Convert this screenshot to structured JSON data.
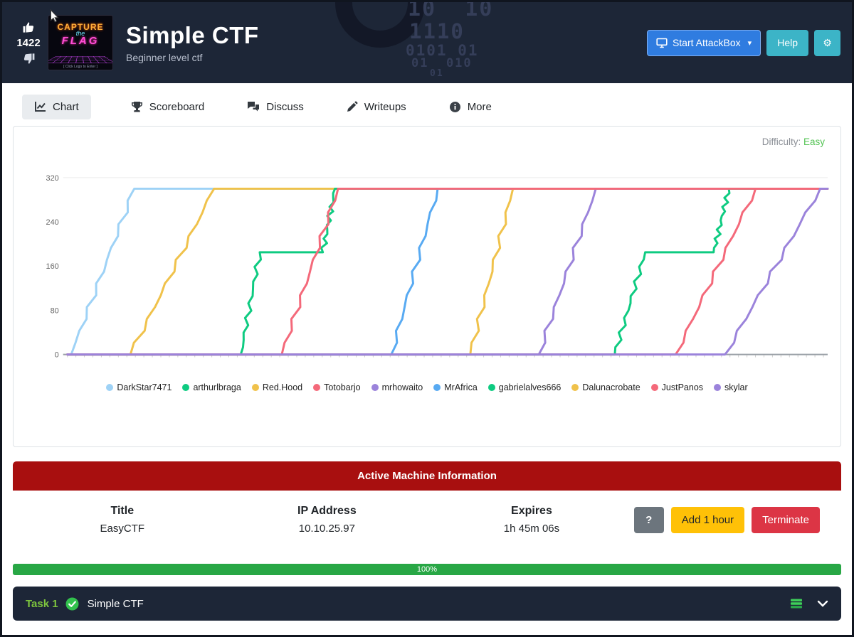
{
  "header": {
    "votes": "1422",
    "title": "Simple CTF",
    "subtitle": "Beginner level ctf",
    "attackbox_label": "Start AttackBox",
    "help_label": "Help",
    "logo": {
      "line1": "CAPTURE",
      "line2": "the",
      "line3": "FLAG",
      "caption": "[ Click Logo to Enter ]"
    },
    "watermark": [
      "10  10",
      "1110",
      "0101 01",
      "01  010",
      "01"
    ]
  },
  "tabs": [
    {
      "label": "Chart",
      "active": true
    },
    {
      "label": "Scoreboard",
      "active": false
    },
    {
      "label": "Discuss",
      "active": false
    },
    {
      "label": "Writeups",
      "active": false
    },
    {
      "label": "More",
      "active": false
    }
  ],
  "chart": {
    "difficulty_label": "Difficulty:",
    "difficulty_value": "Easy"
  },
  "chart_data": {
    "type": "line",
    "title": "",
    "xlabel": "",
    "ylabel": "",
    "ylim": [
      0,
      320
    ],
    "y_ticks": [
      0,
      80,
      160,
      240,
      320
    ],
    "x_range": [
      0,
      100
    ],
    "max_score": 300,
    "grid": "top-line-only",
    "legend_position": "bottom",
    "series": [
      {
        "name": "DarkStar7471",
        "color": "#9ed2f6",
        "points": [
          [
            0,
            0
          ],
          [
            0.5,
            0
          ],
          [
            8.8,
            300
          ],
          [
            100,
            300
          ]
        ]
      },
      {
        "name": "arthurlbraga",
        "color": "#0ecb81",
        "points": [
          [
            0,
            0
          ],
          [
            22.8,
            0
          ],
          [
            25.3,
            185
          ],
          [
            33.6,
            185
          ],
          [
            35.2,
            300
          ],
          [
            100,
            300
          ]
        ]
      },
      {
        "name": "Red.Hood",
        "color": "#f0c24b",
        "points": [
          [
            0,
            0
          ],
          [
            8.3,
            0
          ],
          [
            19.3,
            300
          ],
          [
            100,
            300
          ]
        ]
      },
      {
        "name": "Totobarjo",
        "color": "#f4697a",
        "points": [
          [
            0,
            0
          ],
          [
            28.2,
            0
          ],
          [
            35.6,
            300
          ],
          [
            100,
            300
          ]
        ]
      },
      {
        "name": "mrhowaito",
        "color": "#9b83db",
        "points": [
          [
            0,
            0
          ],
          [
            62,
            0
          ],
          [
            69.5,
            300
          ],
          [
            100,
            300
          ]
        ]
      },
      {
        "name": "MrAfrica",
        "color": "#58aaf2",
        "points": [
          [
            0,
            0
          ],
          [
            42.6,
            0
          ],
          [
            48.7,
            300
          ],
          [
            100,
            300
          ]
        ]
      },
      {
        "name": "gabrielalves666",
        "color": "#0ecb81",
        "points": [
          [
            0,
            0
          ],
          [
            72,
            0
          ],
          [
            76,
            185
          ],
          [
            85,
            185
          ],
          [
            87,
            300
          ],
          [
            100,
            300
          ]
        ]
      },
      {
        "name": "Dalunacrobate",
        "color": "#f0c24b",
        "points": [
          [
            0,
            0
          ],
          [
            53,
            0
          ],
          [
            58.6,
            300
          ],
          [
            100,
            300
          ]
        ]
      },
      {
        "name": "JustPanos",
        "color": "#f4697a",
        "points": [
          [
            0,
            0
          ],
          [
            80,
            0
          ],
          [
            90.5,
            300
          ],
          [
            100,
            300
          ]
        ]
      },
      {
        "name": "skylar",
        "color": "#9b83db",
        "points": [
          [
            0,
            0
          ],
          [
            86.5,
            0
          ],
          [
            99,
            300
          ],
          [
            100,
            300
          ]
        ]
      }
    ],
    "draw_order": [
      "DarkStar7471",
      "Red.Hood",
      "arthurlbraga",
      "MrAfrica",
      "Dalunacrobate",
      "mrhowaito",
      "gabrielalves666",
      "Totobarjo",
      "JustPanos",
      "skylar"
    ]
  },
  "machine": {
    "panel_title": "Active Machine Information",
    "fields": [
      {
        "label": "Title",
        "value": "EasyCTF"
      },
      {
        "label": "IP Address",
        "value": "10.10.25.97"
      },
      {
        "label": "Expires",
        "value": "1h 45m 06s"
      }
    ],
    "help_button": "?",
    "add_hour_button": "Add 1 hour",
    "terminate_button": "Terminate"
  },
  "progress": {
    "label": "100%",
    "value": 100,
    "color": "#28a745"
  },
  "task": {
    "label": "Task 1",
    "title": "Simple CTF"
  },
  "colors": {
    "header_bg": "#1d2637",
    "attackbox_blue": "#2f7ce0",
    "help_teal": "#3cb4c7",
    "machine_header_red": "#a80f0f",
    "add_hour_yellow": "#ffc107",
    "terminate_red": "#dc3545",
    "progress_green": "#28a745",
    "difficulty_green": "#56c456",
    "task_green": "#7ec63e"
  }
}
